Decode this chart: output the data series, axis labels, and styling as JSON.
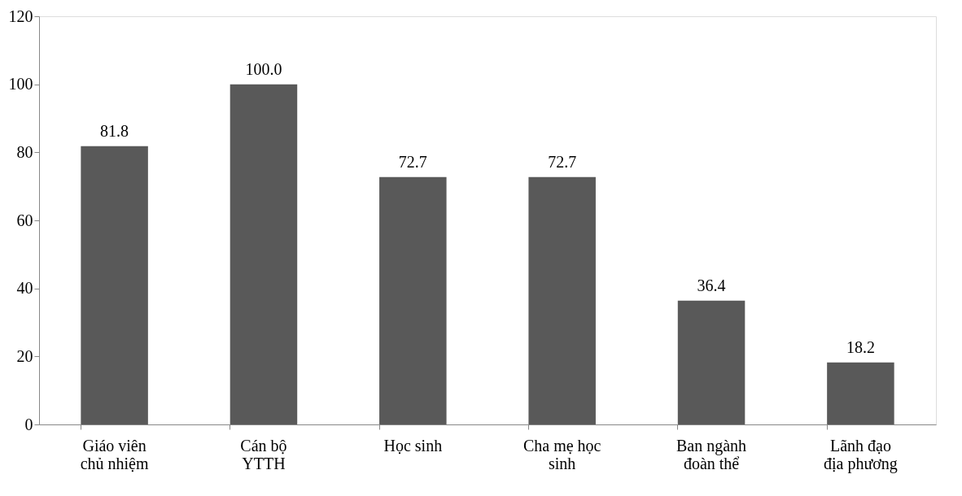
{
  "chart_data": {
    "type": "bar",
    "categories": [
      "Giáo viên chủ nhiệm",
      "Cán bộ YTTH",
      "Học sinh",
      "Cha mẹ học sinh",
      "Ban ngành đoàn thể",
      "Lãnh đạo địa phương"
    ],
    "values": [
      81.8,
      100.0,
      72.7,
      72.7,
      36.4,
      18.2
    ],
    "value_labels": [
      "81.8",
      "100.0",
      "72.7",
      "72.7",
      "36.4",
      "18.2"
    ],
    "color": "#595959",
    "ylim": [
      0,
      120
    ],
    "yticks": [
      0,
      20,
      40,
      60,
      80,
      100,
      120
    ],
    "grid": false
  }
}
